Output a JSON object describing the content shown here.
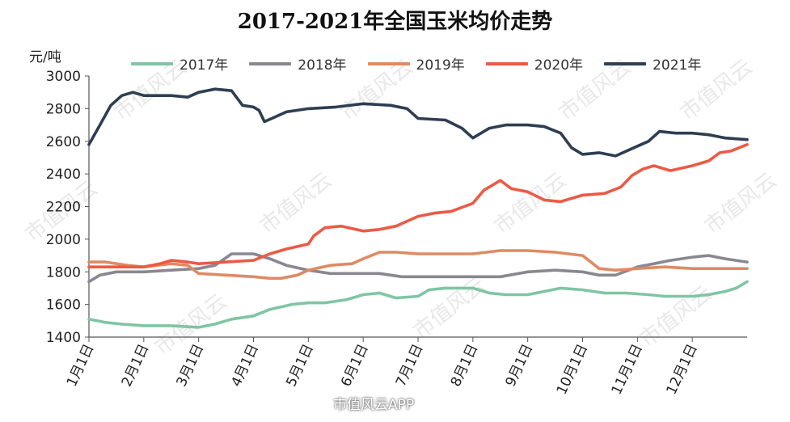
{
  "chart_data": {
    "type": "line",
    "title": "2017-2021年全国玉米均价走势",
    "unit_label": "元/吨",
    "ylim": [
      1400,
      3000
    ],
    "yticks": [
      1400,
      1600,
      1800,
      2000,
      2200,
      2400,
      2600,
      2800,
      3000
    ],
    "x_domain": [
      1,
      13
    ],
    "xticks": [
      {
        "pos": 1,
        "label": "1月1日"
      },
      {
        "pos": 2,
        "label": "2月1日"
      },
      {
        "pos": 3,
        "label": "3月1日"
      },
      {
        "pos": 4,
        "label": "4月1日"
      },
      {
        "pos": 5,
        "label": "5月1日"
      },
      {
        "pos": 6,
        "label": "6月1日"
      },
      {
        "pos": 7,
        "label": "7月1日"
      },
      {
        "pos": 8,
        "label": "8月1日"
      },
      {
        "pos": 9,
        "label": "9月1日"
      },
      {
        "pos": 10,
        "label": "10月1日"
      },
      {
        "pos": 11,
        "label": "11月1日"
      },
      {
        "pos": 12,
        "label": "12月1日"
      }
    ],
    "legend_position": "top",
    "grid": false,
    "series": [
      {
        "name": "2017年",
        "color": "#7fc5a4",
        "points": [
          [
            1,
            1510
          ],
          [
            1.3,
            1490
          ],
          [
            1.6,
            1480
          ],
          [
            2,
            1470
          ],
          [
            2.5,
            1470
          ],
          [
            3,
            1460
          ],
          [
            3.3,
            1480
          ],
          [
            3.6,
            1510
          ],
          [
            4,
            1530
          ],
          [
            4.3,
            1570
          ],
          [
            4.7,
            1600
          ],
          [
            5,
            1610
          ],
          [
            5.3,
            1610
          ],
          [
            5.7,
            1630
          ],
          [
            6,
            1660
          ],
          [
            6.3,
            1670
          ],
          [
            6.6,
            1640
          ],
          [
            7,
            1650
          ],
          [
            7.2,
            1690
          ],
          [
            7.5,
            1700
          ],
          [
            8,
            1700
          ],
          [
            8.3,
            1670
          ],
          [
            8.6,
            1660
          ],
          [
            9,
            1660
          ],
          [
            9.3,
            1680
          ],
          [
            9.6,
            1700
          ],
          [
            10,
            1690
          ],
          [
            10.4,
            1670
          ],
          [
            10.8,
            1670
          ],
          [
            11.2,
            1660
          ],
          [
            11.5,
            1650
          ],
          [
            12,
            1650
          ],
          [
            12.3,
            1660
          ],
          [
            12.6,
            1680
          ],
          [
            12.8,
            1700
          ],
          [
            13,
            1740
          ]
        ]
      },
      {
        "name": "2018年",
        "color": "#8a8790",
        "points": [
          [
            1,
            1740
          ],
          [
            1.2,
            1780
          ],
          [
            1.5,
            1800
          ],
          [
            2,
            1800
          ],
          [
            2.5,
            1810
          ],
          [
            3,
            1820
          ],
          [
            3.3,
            1840
          ],
          [
            3.6,
            1910
          ],
          [
            4,
            1910
          ],
          [
            4.3,
            1880
          ],
          [
            4.6,
            1840
          ],
          [
            5,
            1810
          ],
          [
            5.4,
            1790
          ],
          [
            6,
            1790
          ],
          [
            6.3,
            1790
          ],
          [
            6.7,
            1770
          ],
          [
            7,
            1770
          ],
          [
            7.5,
            1770
          ],
          [
            8,
            1770
          ],
          [
            8.5,
            1770
          ],
          [
            9,
            1800
          ],
          [
            9.5,
            1810
          ],
          [
            10,
            1800
          ],
          [
            10.3,
            1780
          ],
          [
            10.6,
            1780
          ],
          [
            11,
            1830
          ],
          [
            11.3,
            1850
          ],
          [
            11.6,
            1870
          ],
          [
            12,
            1890
          ],
          [
            12.3,
            1900
          ],
          [
            12.6,
            1880
          ],
          [
            12.8,
            1870
          ],
          [
            13,
            1860
          ]
        ]
      },
      {
        "name": "2019年",
        "color": "#e08a63",
        "points": [
          [
            1,
            1860
          ],
          [
            1.3,
            1860
          ],
          [
            1.7,
            1840
          ],
          [
            2,
            1830
          ],
          [
            2.5,
            1850
          ],
          [
            2.8,
            1840
          ],
          [
            3,
            1790
          ],
          [
            3.5,
            1780
          ],
          [
            4,
            1770
          ],
          [
            4.3,
            1760
          ],
          [
            4.5,
            1760
          ],
          [
            4.8,
            1780
          ],
          [
            5,
            1810
          ],
          [
            5.4,
            1840
          ],
          [
            5.8,
            1850
          ],
          [
            6,
            1880
          ],
          [
            6.3,
            1920
          ],
          [
            6.6,
            1920
          ],
          [
            7,
            1910
          ],
          [
            7.5,
            1910
          ],
          [
            8,
            1910
          ],
          [
            8.5,
            1930
          ],
          [
            9,
            1930
          ],
          [
            9.5,
            1920
          ],
          [
            10,
            1900
          ],
          [
            10.3,
            1820
          ],
          [
            10.6,
            1810
          ],
          [
            11,
            1820
          ],
          [
            11.5,
            1830
          ],
          [
            12,
            1820
          ],
          [
            12.5,
            1820
          ],
          [
            13,
            1820
          ]
        ]
      },
      {
        "name": "2020年",
        "color": "#ec5a45",
        "points": [
          [
            1,
            1830
          ],
          [
            1.5,
            1830
          ],
          [
            2,
            1830
          ],
          [
            2.3,
            1850
          ],
          [
            2.5,
            1870
          ],
          [
            2.8,
            1860
          ],
          [
            3,
            1850
          ],
          [
            3.5,
            1860
          ],
          [
            4,
            1870
          ],
          [
            4.3,
            1910
          ],
          [
            4.6,
            1940
          ],
          [
            5,
            1970
          ],
          [
            5.1,
            2020
          ],
          [
            5.3,
            2070
          ],
          [
            5.6,
            2080
          ],
          [
            6,
            2050
          ],
          [
            6.3,
            2060
          ],
          [
            6.6,
            2080
          ],
          [
            7,
            2140
          ],
          [
            7.3,
            2160
          ],
          [
            7.6,
            2170
          ],
          [
            8,
            2220
          ],
          [
            8.2,
            2300
          ],
          [
            8.5,
            2360
          ],
          [
            8.7,
            2310
          ],
          [
            9,
            2290
          ],
          [
            9.3,
            2240
          ],
          [
            9.6,
            2230
          ],
          [
            10,
            2270
          ],
          [
            10.4,
            2280
          ],
          [
            10.7,
            2320
          ],
          [
            10.9,
            2390
          ],
          [
            11.1,
            2430
          ],
          [
            11.3,
            2450
          ],
          [
            11.6,
            2420
          ],
          [
            12,
            2450
          ],
          [
            12.3,
            2480
          ],
          [
            12.5,
            2530
          ],
          [
            12.7,
            2540
          ],
          [
            13,
            2580
          ]
        ]
      },
      {
        "name": "2021年",
        "color": "#2e3e52",
        "points": [
          [
            1,
            2580
          ],
          [
            1.2,
            2700
          ],
          [
            1.4,
            2820
          ],
          [
            1.6,
            2880
          ],
          [
            1.8,
            2900
          ],
          [
            2,
            2880
          ],
          [
            2.5,
            2880
          ],
          [
            2.8,
            2870
          ],
          [
            3,
            2900
          ],
          [
            3.3,
            2920
          ],
          [
            3.6,
            2910
          ],
          [
            3.8,
            2820
          ],
          [
            4,
            2810
          ],
          [
            4.1,
            2790
          ],
          [
            4.2,
            2720
          ],
          [
            4.4,
            2750
          ],
          [
            4.6,
            2780
          ],
          [
            5,
            2800
          ],
          [
            5.5,
            2810
          ],
          [
            6,
            2830
          ],
          [
            6.5,
            2820
          ],
          [
            6.8,
            2800
          ],
          [
            7,
            2740
          ],
          [
            7.5,
            2730
          ],
          [
            7.8,
            2680
          ],
          [
            8,
            2620
          ],
          [
            8.3,
            2680
          ],
          [
            8.6,
            2700
          ],
          [
            9,
            2700
          ],
          [
            9.3,
            2690
          ],
          [
            9.6,
            2650
          ],
          [
            9.8,
            2560
          ],
          [
            10,
            2520
          ],
          [
            10.3,
            2530
          ],
          [
            10.6,
            2510
          ],
          [
            11,
            2570
          ],
          [
            11.2,
            2600
          ],
          [
            11.4,
            2660
          ],
          [
            11.7,
            2650
          ],
          [
            12,
            2650
          ],
          [
            12.3,
            2640
          ],
          [
            12.6,
            2620
          ],
          [
            13,
            2610
          ]
        ]
      }
    ]
  },
  "watermark_text": "市值风云",
  "source_text": "市值风云APP"
}
